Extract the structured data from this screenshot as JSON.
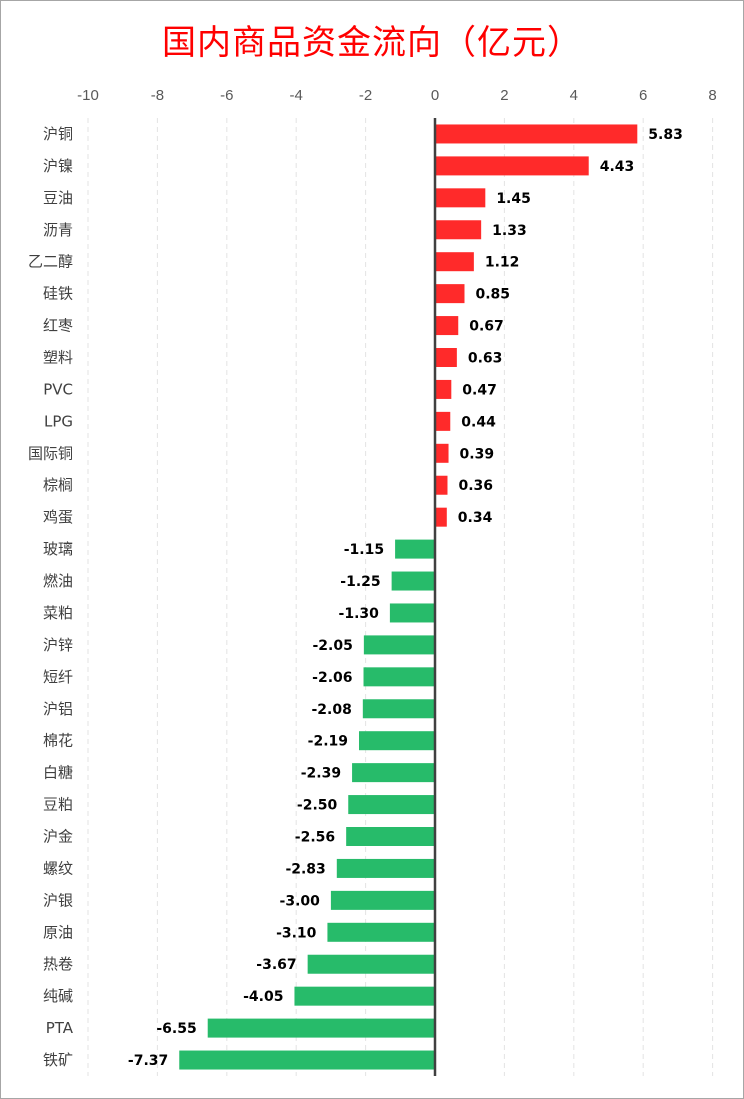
{
  "chart_data": {
    "type": "bar",
    "orientation": "horizontal",
    "title": "国内商品资金流向（亿元）",
    "xlim": [
      -10,
      8
    ],
    "xticks": [
      -10,
      -8,
      -6,
      -4,
      -2,
      0,
      2,
      4,
      6,
      8
    ],
    "grid": "vertical dashed",
    "colors": {
      "positive": "#ff2a2a",
      "negative": "#27bb6a",
      "title": "#ff0000"
    },
    "categories": [
      "沪铜",
      "沪镍",
      "豆油",
      "沥青",
      "乙二醇",
      "硅铁",
      "红枣",
      "塑料",
      "PVC",
      "LPG",
      "国际铜",
      "棕榈",
      "鸡蛋",
      "玻璃",
      "燃油",
      "菜粕",
      "沪锌",
      "短纤",
      "沪铝",
      "棉花",
      "白糖",
      "豆粕",
      "沪金",
      "螺纹",
      "沪银",
      "原油",
      "热卷",
      "纯碱",
      "PTA",
      "铁矿"
    ],
    "values": [
      5.83,
      4.43,
      1.45,
      1.33,
      1.12,
      0.85,
      0.67,
      0.63,
      0.47,
      0.44,
      0.39,
      0.36,
      0.34,
      -1.15,
      -1.25,
      -1.3,
      -2.05,
      -2.06,
      -2.08,
      -2.19,
      -2.39,
      -2.5,
      -2.56,
      -2.83,
      -3.0,
      -3.1,
      -3.67,
      -4.05,
      -6.55,
      -7.37
    ]
  }
}
